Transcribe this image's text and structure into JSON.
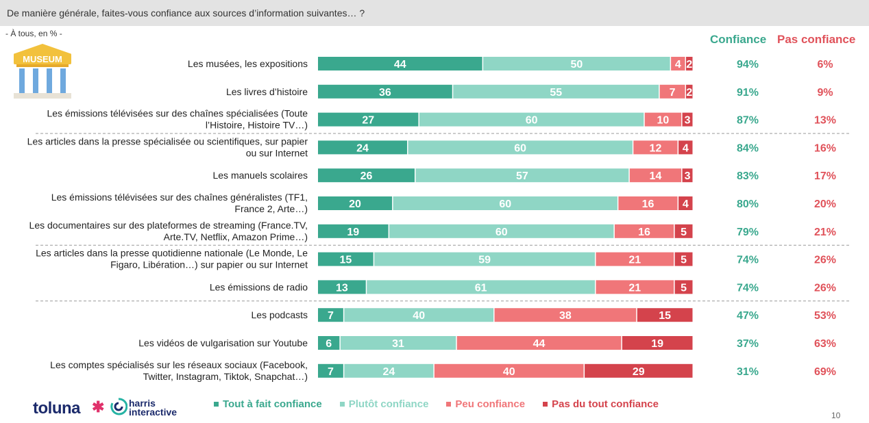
{
  "header": {
    "question": "De manière générale, faites-vous confiance aux sources d’information suivantes… ?"
  },
  "base_label": "- À tous, en % -",
  "museum_label": "MUSEUM",
  "columns": {
    "trust": "Confiance",
    "distrust": "Pas confiance"
  },
  "colors": {
    "tout_a_fait": "#3aa88e",
    "plutot": "#8fd6c5",
    "peu": "#f07679",
    "pas_du_tout": "#d4434c",
    "trust_text": "#3aa88e",
    "distrust_text": "#e0525a"
  },
  "chart_data": {
    "type": "bar",
    "orientation": "horizontal",
    "stacked": true,
    "xlim": [
      0,
      100
    ],
    "categories": [
      [
        "Les musées, les expositions"
      ],
      [
        "Les livres d’histoire"
      ],
      [
        "Les émissions télévisées sur des chaînes spécialisées (Toute",
        "l’Histoire, Histoire TV…)"
      ],
      [
        "Les articles dans la presse spécialisée ou scientifiques, sur papier",
        "ou sur Internet"
      ],
      [
        "Les manuels scolaires"
      ],
      [
        "Les émissions télévisées sur des chaînes généralistes (TF1,",
        "France 2, Arte…)"
      ],
      [
        "Les documentaires sur des plateformes de streaming (France.TV,",
        "Arte.TV, Netflix, Amazon Prime…)"
      ],
      [
        "Les articles dans la presse quotidienne nationale (Le Monde, Le",
        "Figaro, Libération…) sur papier ou sur Internet"
      ],
      [
        "Les émissions de radio"
      ],
      [
        "Les podcasts"
      ],
      [
        "Les vidéos de vulgarisation sur Youtube"
      ],
      [
        "Les comptes spécialisés sur les réseaux sociaux (Facebook,",
        "Twitter, Instagram, Tiktok, Snapchat…)"
      ]
    ],
    "series": [
      {
        "name": "Tout à fait confiance",
        "values": [
          44,
          36,
          27,
          24,
          26,
          20,
          19,
          15,
          13,
          7,
          6,
          7
        ]
      },
      {
        "name": "Plutôt confiance",
        "values": [
          50,
          55,
          60,
          60,
          57,
          60,
          60,
          59,
          61,
          40,
          31,
          24
        ]
      },
      {
        "name": "Peu confiance",
        "values": [
          4,
          7,
          10,
          12,
          14,
          16,
          16,
          21,
          21,
          38,
          44,
          40
        ]
      },
      {
        "name": "Pas du tout confiance",
        "values": [
          2,
          2,
          3,
          4,
          3,
          4,
          5,
          5,
          5,
          15,
          19,
          29
        ]
      }
    ],
    "confiance": [
      "94%",
      "91%",
      "87%",
      "84%",
      "83%",
      "80%",
      "79%",
      "74%",
      "74%",
      "47%",
      "37%",
      "31%"
    ],
    "pas_confiance": [
      "6%",
      "9%",
      "13%",
      "16%",
      "17%",
      "20%",
      "21%",
      "26%",
      "26%",
      "53%",
      "63%",
      "69%"
    ],
    "group_separators_after": [
      2,
      6,
      8
    ],
    "legend_position": "bottom"
  },
  "legend": [
    {
      "label": "Tout à fait confiance",
      "color": "#3aa88e"
    },
    {
      "label": "Plutôt confiance",
      "color": "#8fd6c5"
    },
    {
      "label": "Peu confiance",
      "color": "#f07679"
    },
    {
      "label": "Pas du tout confiance",
      "color": "#d4434c"
    }
  ],
  "footer": {
    "brand1": "toluna",
    "brand2_line1": "harris",
    "brand2_line2": "interactive",
    "page_number": "10"
  }
}
